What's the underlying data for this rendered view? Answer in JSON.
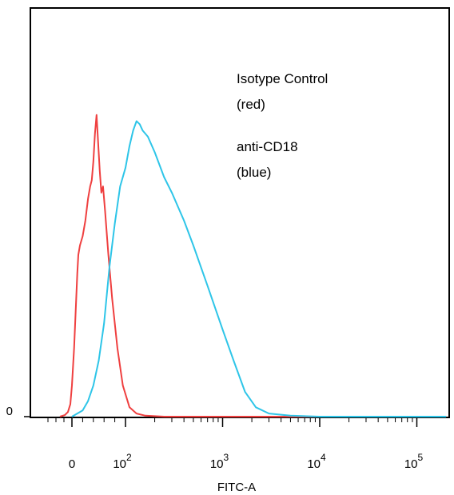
{
  "chart_data": {
    "type": "line",
    "title": "",
    "xlabel": "FITC-A",
    "ylabel": "",
    "x_scale": "biexponential",
    "x_ticks": [
      {
        "value": 0,
        "label": "0"
      },
      {
        "value": 100,
        "label": "10",
        "exp": "2"
      },
      {
        "value": 1000,
        "label": "10",
        "exp": "3"
      },
      {
        "value": 10000,
        "label": "10",
        "exp": "4"
      },
      {
        "value": 100000,
        "label": "10",
        "exp": "5"
      }
    ],
    "y_ticks": [
      {
        "value": 0,
        "label": "0"
      }
    ],
    "ylim": [
      0,
      100
    ],
    "grid": false,
    "legend": [
      {
        "lines": [
          "Isotype Control",
          "(red)"
        ]
      },
      {
        "lines": [
          "anti-CD18",
          "(blue)"
        ]
      }
    ],
    "series": [
      {
        "color": "#ef4040",
        "points": [
          [
            -30,
            0
          ],
          [
            -18,
            0.5
          ],
          [
            -10,
            1.5
          ],
          [
            -4,
            4
          ],
          [
            0,
            10
          ],
          [
            4,
            22
          ],
          [
            7,
            34
          ],
          [
            10,
            46
          ],
          [
            12,
            52
          ],
          [
            15,
            55
          ],
          [
            20,
            58
          ],
          [
            25,
            63
          ],
          [
            30,
            70
          ],
          [
            34,
            74
          ],
          [
            37,
            76
          ],
          [
            40,
            82
          ],
          [
            43,
            91
          ],
          [
            46,
            97
          ],
          [
            49,
            88
          ],
          [
            52,
            79
          ],
          [
            55,
            72
          ],
          [
            58,
            74
          ],
          [
            62,
            66
          ],
          [
            68,
            52
          ],
          [
            75,
            38
          ],
          [
            85,
            22
          ],
          [
            95,
            10
          ],
          [
            110,
            3
          ],
          [
            130,
            1
          ],
          [
            160,
            0.3
          ],
          [
            250,
            0
          ],
          [
            1000,
            0
          ],
          [
            10000,
            0
          ],
          [
            200000,
            0
          ]
        ]
      },
      {
        "color": "#2ec5e8",
        "points": [
          [
            0,
            0
          ],
          [
            10,
            1
          ],
          [
            20,
            2
          ],
          [
            30,
            5
          ],
          [
            40,
            10
          ],
          [
            50,
            18
          ],
          [
            60,
            30
          ],
          [
            70,
            48
          ],
          [
            80,
            62
          ],
          [
            90,
            74
          ],
          [
            100,
            80
          ],
          [
            110,
            87
          ],
          [
            120,
            92
          ],
          [
            130,
            95
          ],
          [
            140,
            94
          ],
          [
            150,
            92
          ],
          [
            170,
            90
          ],
          [
            200,
            85
          ],
          [
            250,
            77
          ],
          [
            300,
            72
          ],
          [
            400,
            63
          ],
          [
            500,
            55
          ],
          [
            700,
            42
          ],
          [
            1000,
            28
          ],
          [
            1300,
            18
          ],
          [
            1700,
            8
          ],
          [
            2200,
            3
          ],
          [
            3000,
            1
          ],
          [
            5000,
            0.3
          ],
          [
            10000,
            0
          ],
          [
            200000,
            0
          ]
        ]
      }
    ]
  }
}
